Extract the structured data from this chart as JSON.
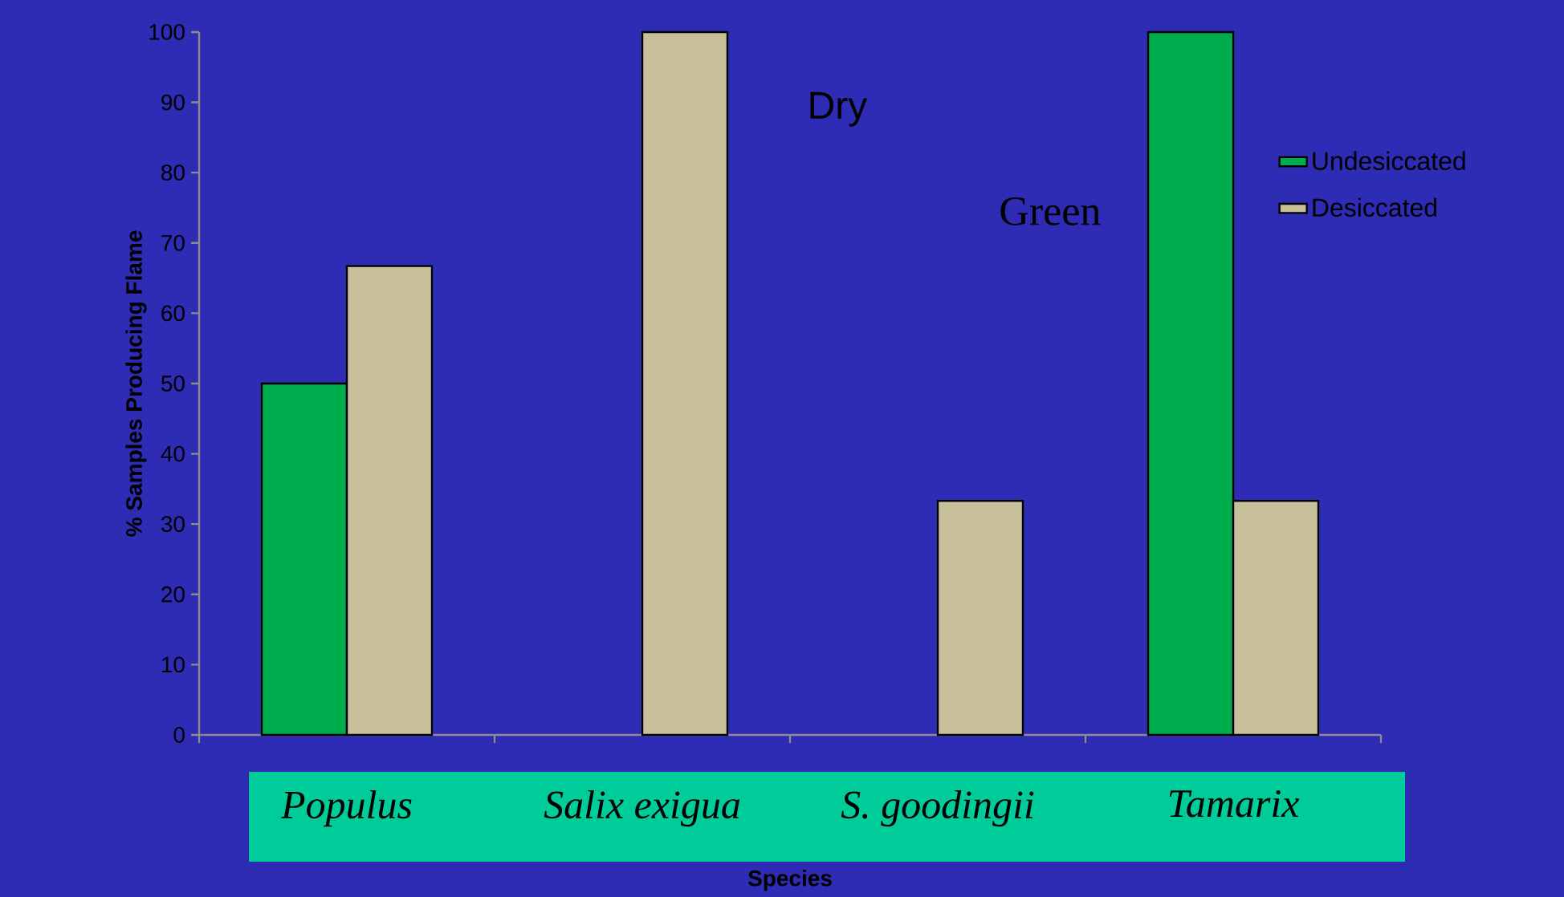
{
  "chart_data": {
    "type": "bar",
    "ylabel": "% Samples Producing Flame",
    "xlabel": "Species",
    "categories": [
      "Populus",
      "Salix exigua",
      "S. goodingii",
      "Tamarix"
    ],
    "series": [
      {
        "name": "Undesiccated",
        "color": "#00ad4e",
        "values": [
          50,
          null,
          null,
          100
        ]
      },
      {
        "name": "Desiccated",
        "color": "#c7be9a",
        "values": [
          66.7,
          100,
          33.3,
          33.3
        ]
      }
    ],
    "ylim": [
      0,
      100
    ],
    "yticks": [
      0,
      10,
      20,
      30,
      40,
      50,
      60,
      70,
      80,
      90,
      100
    ],
    "annotations": [
      "Dry",
      "Green"
    ],
    "legend": "right",
    "grid": false
  }
}
